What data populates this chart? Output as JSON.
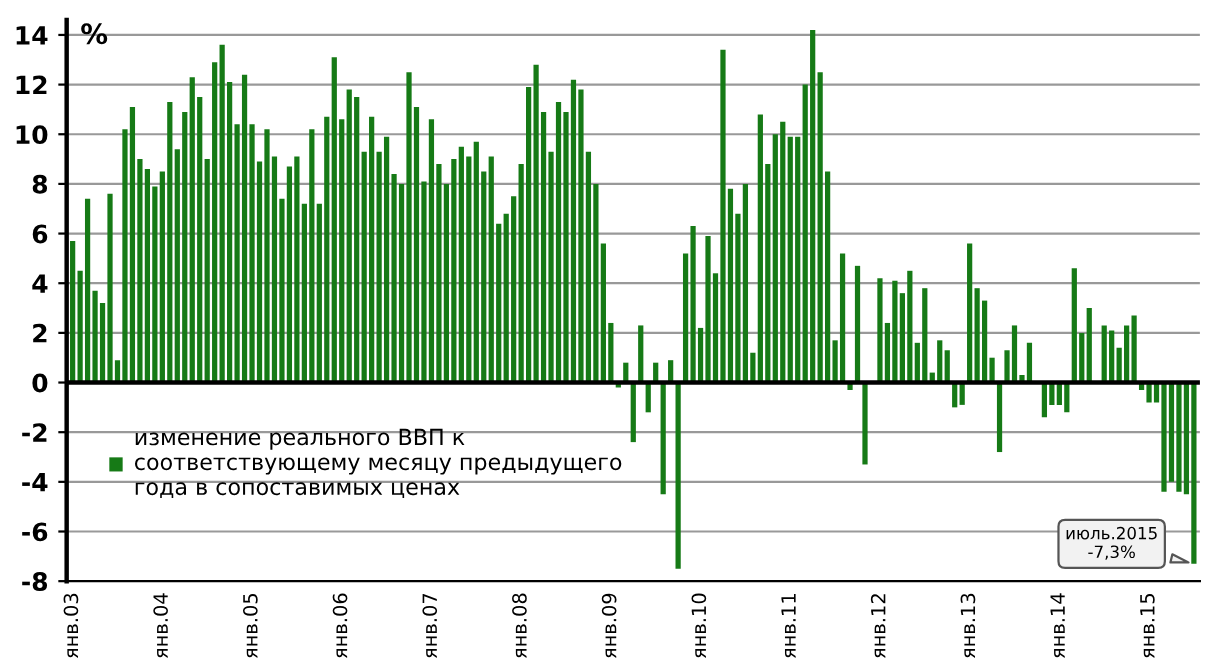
{
  "chart_data": {
    "type": "bar",
    "ylabel": "%",
    "categories": [
      "янв.03",
      null,
      null,
      null,
      null,
      null,
      null,
      null,
      null,
      null,
      null,
      null,
      "янв.04",
      null,
      null,
      null,
      null,
      null,
      null,
      null,
      null,
      null,
      null,
      null,
      "янв.05",
      null,
      null,
      null,
      null,
      null,
      null,
      null,
      null,
      null,
      null,
      null,
      "янв.06",
      null,
      null,
      null,
      null,
      null,
      null,
      null,
      null,
      null,
      null,
      null,
      "янв.07",
      null,
      null,
      null,
      null,
      null,
      null,
      null,
      null,
      null,
      null,
      null,
      "янв.08",
      null,
      null,
      null,
      null,
      null,
      null,
      null,
      null,
      null,
      null,
      null,
      "янв.09",
      null,
      null,
      null,
      null,
      null,
      null,
      null,
      null,
      null,
      null,
      null,
      "янв.10",
      null,
      null,
      null,
      null,
      null,
      null,
      null,
      null,
      null,
      null,
      null,
      "янв.11",
      null,
      null,
      null,
      null,
      null,
      null,
      null,
      null,
      null,
      null,
      null,
      "янв.12",
      null,
      null,
      null,
      null,
      null,
      null,
      null,
      null,
      null,
      null,
      null,
      "янв.13",
      null,
      null,
      null,
      null,
      null,
      null,
      null,
      null,
      null,
      null,
      null,
      "янв.14",
      null,
      null,
      null,
      null,
      null,
      null,
      null,
      null,
      null,
      null,
      null,
      "янв.15",
      null,
      null,
      null,
      null,
      null,
      null
    ],
    "series": [
      {
        "name": "изменение реального ВВП к\nсоответствующему месяцу предыдущего\nгода в сопоставимых ценах",
        "color": "#167a16",
        "values": [
          5.7,
          4.5,
          7.4,
          3.7,
          3.2,
          7.6,
          0.9,
          10.2,
          11.1,
          9.0,
          8.6,
          7.9,
          8.5,
          11.3,
          9.4,
          10.9,
          12.3,
          11.5,
          9.0,
          12.9,
          13.6,
          12.1,
          10.4,
          12.4,
          10.4,
          8.9,
          10.2,
          9.1,
          7.4,
          8.7,
          9.1,
          7.2,
          10.2,
          7.2,
          10.7,
          13.1,
          10.6,
          11.8,
          11.5,
          9.3,
          10.7,
          9.3,
          9.9,
          8.4,
          8.0,
          12.5,
          11.1,
          8.1,
          10.6,
          8.8,
          8.0,
          9.0,
          9.5,
          9.1,
          9.7,
          8.5,
          9.1,
          6.4,
          6.8,
          7.5,
          8.8,
          11.9,
          12.8,
          10.9,
          9.3,
          11.3,
          10.9,
          12.2,
          11.8,
          9.3,
          8.0,
          5.6,
          2.4,
          -0.2,
          0.8,
          -2.4,
          2.3,
          -1.2,
          0.8,
          -4.5,
          0.9,
          -7.5,
          5.2,
          6.3,
          2.2,
          5.9,
          4.4,
          13.4,
          7.8,
          6.8,
          8.0,
          1.2,
          10.8,
          8.8,
          10.0,
          10.5,
          9.9,
          9.9,
          12.0,
          14.2,
          12.5,
          8.5,
          1.7,
          5.2,
          -0.3,
          4.7,
          -3.3,
          0.0,
          4.2,
          2.4,
          4.1,
          3.6,
          4.5,
          1.6,
          3.8,
          0.4,
          1.7,
          1.3,
          -1.0,
          -0.9,
          5.6,
          3.8,
          3.3,
          1.0,
          -2.8,
          1.3,
          2.3,
          0.3,
          1.6,
          0.0,
          -1.4,
          -0.9,
          -0.9,
          -1.2,
          4.6,
          2.0,
          3.0,
          0.0,
          2.3,
          2.1,
          1.4,
          2.3,
          2.7,
          -0.3,
          -0.8,
          -0.8,
          -4.4,
          -4.0,
          -4.4,
          -4.5,
          -7.3
        ]
      }
    ],
    "ylim": [
      -8,
      14.6
    ],
    "yticks": [
      -8,
      -6,
      -4,
      -2,
      0,
      2,
      4,
      6,
      8,
      10,
      12,
      14
    ],
    "grid": "y",
    "legend": "bottom left",
    "annotations": [
      "июль.2015\n-7,3%"
    ]
  }
}
